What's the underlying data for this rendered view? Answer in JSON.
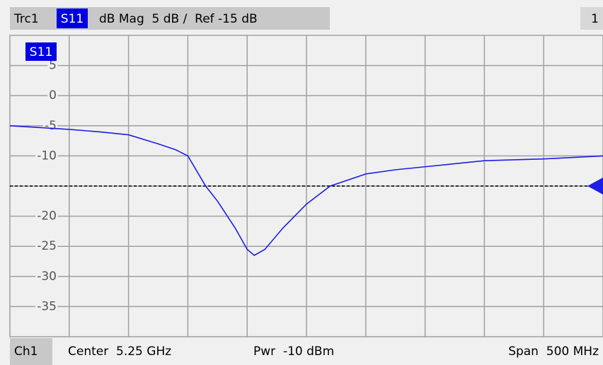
{
  "header": {
    "trace": "Trc1",
    "param": "S11",
    "format": "dB Mag  5 dB /  Ref -15 dB",
    "channel_number": "1"
  },
  "footer": {
    "channel": "Ch1",
    "center": "Center  5.25 GHz",
    "power": "Pwr  -10 dBm",
    "span": "Span  500 MHz"
  },
  "chart_data": {
    "type": "line",
    "x": [
      5.0,
      5.025,
      5.05,
      5.075,
      5.1,
      5.125,
      5.14,
      5.15,
      5.165,
      5.175,
      5.19,
      5.2,
      5.206,
      5.215,
      5.23,
      5.25,
      5.27,
      5.3,
      5.325,
      5.35,
      5.375,
      5.4,
      5.45,
      5.5
    ],
    "series": [
      {
        "name": "S11",
        "color": "#1e1ee6",
        "values": [
          -5.0,
          -5.3,
          -5.6,
          -6.0,
          -6.5,
          -8.0,
          -9.0,
          -10.0,
          -15.0,
          -17.5,
          -22.0,
          -25.5,
          -26.5,
          -25.5,
          -22.0,
          -18.0,
          -15.0,
          -13.0,
          -12.3,
          -11.8,
          -11.3,
          -10.8,
          -10.5,
          -10.0
        ]
      }
    ],
    "xlim": [
      5.0,
      5.5
    ],
    "ylim": [
      -40,
      10
    ],
    "yticks": [
      -35,
      -30,
      -25,
      -20,
      -15,
      -10,
      -5,
      0,
      5
    ],
    "ref_level": -15,
    "grid": true
  }
}
